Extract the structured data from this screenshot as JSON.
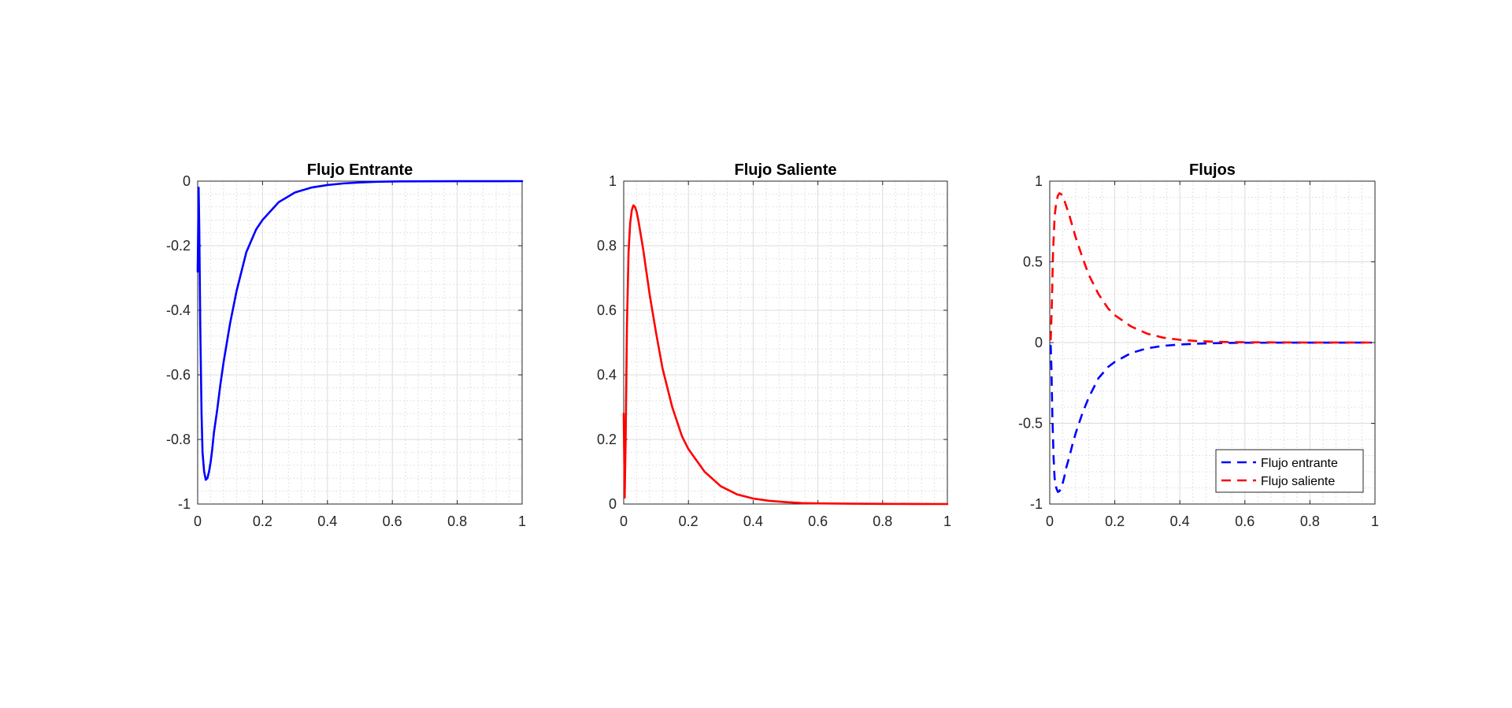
{
  "chart_data": [
    {
      "type": "line",
      "title": "Flujo Entrante",
      "xlabel": "",
      "ylabel": "",
      "xlim": [
        0,
        1
      ],
      "ylim": [
        -1,
        0
      ],
      "xticks": [
        "0",
        "0.2",
        "0.4",
        "0.6",
        "0.8",
        "1"
      ],
      "yticks": [
        "0",
        "-0.2",
        "-0.4",
        "-0.6",
        "-0.8",
        "-1"
      ],
      "grid": "on",
      "minor_grid": "on",
      "series": [
        {
          "color": "#0000ff",
          "style": "solid",
          "x": [
            0.0,
            0.003,
            0.005,
            0.008,
            0.012,
            0.015,
            0.02,
            0.025,
            0.03,
            0.035,
            0.04,
            0.045,
            0.05,
            0.06,
            0.07,
            0.08,
            0.1,
            0.12,
            0.15,
            0.18,
            0.2,
            0.25,
            0.3,
            0.35,
            0.4,
            0.45,
            0.5,
            0.55,
            0.6,
            0.7,
            0.8,
            0.9,
            1.0
          ],
          "y": [
            -0.28,
            -0.02,
            -0.15,
            -0.45,
            -0.72,
            -0.84,
            -0.9,
            -0.925,
            -0.92,
            -0.9,
            -0.87,
            -0.83,
            -0.78,
            -0.71,
            -0.63,
            -0.56,
            -0.44,
            -0.34,
            -0.22,
            -0.15,
            -0.12,
            -0.065,
            -0.035,
            -0.02,
            -0.012,
            -0.007,
            -0.004,
            -0.002,
            -0.001,
            -0.0005,
            -0.0002,
            -0.0001,
            0.0
          ]
        }
      ]
    },
    {
      "type": "line",
      "title": "Flujo Saliente",
      "xlabel": "",
      "ylabel": "",
      "xlim": [
        0,
        1
      ],
      "ylim": [
        0,
        1
      ],
      "xticks": [
        "0",
        "0.2",
        "0.4",
        "0.6",
        "0.8",
        "1"
      ],
      "yticks": [
        "1",
        "0.8",
        "0.6",
        "0.4",
        "0.2",
        "0"
      ],
      "grid": "on",
      "minor_grid": "on",
      "series": [
        {
          "color": "#ff0000",
          "style": "solid",
          "x": [
            0.0,
            0.003,
            0.006,
            0.01,
            0.015,
            0.02,
            0.025,
            0.03,
            0.035,
            0.04,
            0.045,
            0.05,
            0.06,
            0.07,
            0.08,
            0.1,
            0.12,
            0.15,
            0.18,
            0.2,
            0.25,
            0.3,
            0.35,
            0.4,
            0.45,
            0.5,
            0.55,
            0.6,
            0.7,
            0.8,
            0.9,
            1.0
          ],
          "y": [
            0.28,
            0.02,
            0.2,
            0.55,
            0.78,
            0.87,
            0.91,
            0.925,
            0.92,
            0.905,
            0.88,
            0.85,
            0.79,
            0.72,
            0.65,
            0.53,
            0.42,
            0.3,
            0.21,
            0.17,
            0.1,
            0.055,
            0.03,
            0.017,
            0.01,
            0.006,
            0.003,
            0.002,
            0.001,
            0.0005,
            0.0002,
            0.0
          ]
        }
      ]
    },
    {
      "type": "line",
      "title": "Flujos",
      "xlabel": "",
      "ylabel": "",
      "xlim": [
        0,
        1
      ],
      "ylim": [
        -1,
        1
      ],
      "xticks": [
        "0",
        "0.2",
        "0.4",
        "0.6",
        "0.8",
        "1"
      ],
      "yticks": [
        "1",
        "0.5",
        "0",
        "-0.5",
        "-1"
      ],
      "grid": "on",
      "minor_grid": "on",
      "legend_position": "bottom-right",
      "series": [
        {
          "name": "Flujo entrante",
          "color": "#0000ff",
          "style": "dashed",
          "x": [
            0.0,
            0.003,
            0.005,
            0.008,
            0.012,
            0.015,
            0.02,
            0.025,
            0.03,
            0.035,
            0.04,
            0.045,
            0.05,
            0.06,
            0.07,
            0.08,
            0.1,
            0.12,
            0.15,
            0.18,
            0.2,
            0.25,
            0.3,
            0.35,
            0.4,
            0.45,
            0.5,
            0.55,
            0.6,
            0.7,
            0.8,
            0.9,
            0.99
          ],
          "y": [
            -0.02,
            -0.02,
            -0.15,
            -0.45,
            -0.72,
            -0.84,
            -0.9,
            -0.925,
            -0.92,
            -0.9,
            -0.87,
            -0.83,
            -0.78,
            -0.71,
            -0.63,
            -0.56,
            -0.44,
            -0.34,
            -0.22,
            -0.15,
            -0.12,
            -0.065,
            -0.035,
            -0.02,
            -0.012,
            -0.007,
            -0.004,
            -0.002,
            -0.001,
            -0.0005,
            -0.0002,
            -0.0001,
            0.0
          ]
        },
        {
          "name": "Flujo saliente",
          "color": "#ff0000",
          "style": "dashed",
          "x": [
            0.0,
            0.003,
            0.006,
            0.01,
            0.015,
            0.02,
            0.025,
            0.03,
            0.035,
            0.04,
            0.045,
            0.05,
            0.06,
            0.07,
            0.08,
            0.1,
            0.12,
            0.15,
            0.18,
            0.2,
            0.25,
            0.3,
            0.35,
            0.4,
            0.45,
            0.5,
            0.55,
            0.6,
            0.7,
            0.8,
            0.9,
            0.99
          ],
          "y": [
            0.02,
            0.02,
            0.2,
            0.55,
            0.78,
            0.87,
            0.91,
            0.925,
            0.92,
            0.905,
            0.88,
            0.85,
            0.79,
            0.72,
            0.65,
            0.53,
            0.42,
            0.3,
            0.21,
            0.17,
            0.1,
            0.055,
            0.03,
            0.017,
            0.01,
            0.006,
            0.003,
            0.002,
            0.001,
            0.0005,
            0.0002,
            0.0
          ]
        }
      ]
    }
  ]
}
